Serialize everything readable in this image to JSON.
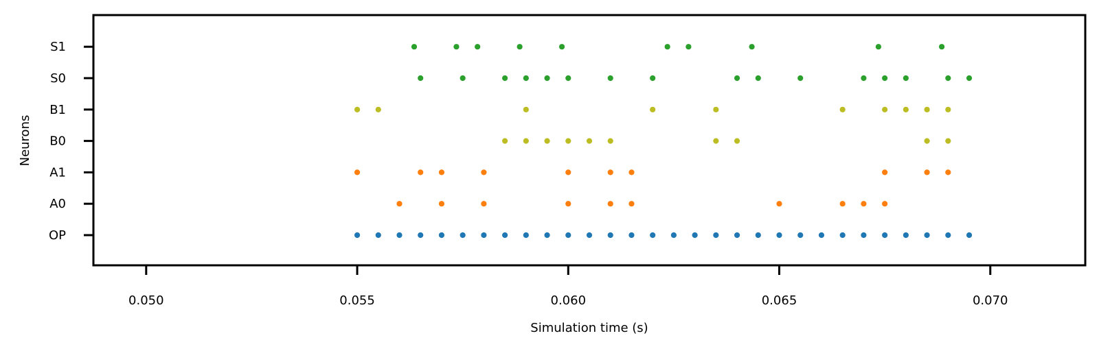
{
  "chart_data": {
    "type": "scatter",
    "title": "",
    "xlabel": "Simulation time (s)",
    "ylabel": "Neurons",
    "xlim": [
      0.04875,
      0.07225
    ],
    "x_ticks": [
      "0.050",
      "0.055",
      "0.060",
      "0.065",
      "0.070"
    ],
    "x_tick_values": [
      0.05,
      0.055,
      0.06,
      0.065,
      0.07
    ],
    "categories": [
      "OP",
      "A0",
      "A1",
      "B0",
      "B1",
      "S0",
      "S1"
    ],
    "grid": false,
    "legend": "none",
    "series": [
      {
        "category": "OP",
        "color": "#1f77b4",
        "x": [
          0.055,
          0.0555,
          0.056,
          0.0565,
          0.057,
          0.0575,
          0.058,
          0.0585,
          0.059,
          0.0595,
          0.06,
          0.0605,
          0.061,
          0.0615,
          0.062,
          0.0625,
          0.063,
          0.0635,
          0.064,
          0.0645,
          0.065,
          0.0655,
          0.066,
          0.0665,
          0.067,
          0.0675,
          0.068,
          0.0685,
          0.069,
          0.0695
        ]
      },
      {
        "category": "A0",
        "color": "#ff7f0e",
        "x": [
          0.056,
          0.057,
          0.058,
          0.06,
          0.061,
          0.0615,
          0.065,
          0.0665,
          0.067,
          0.0675
        ]
      },
      {
        "category": "A1",
        "color": "#ff7f0e",
        "x": [
          0.055,
          0.0565,
          0.057,
          0.058,
          0.06,
          0.061,
          0.0615,
          0.0675,
          0.0685,
          0.069
        ]
      },
      {
        "category": "B0",
        "color": "#bcbd22",
        "x": [
          0.0585,
          0.059,
          0.0595,
          0.06,
          0.0605,
          0.061,
          0.0635,
          0.064,
          0.0685,
          0.069
        ]
      },
      {
        "category": "B1",
        "color": "#bcbd22",
        "x": [
          0.055,
          0.0555,
          0.059,
          0.062,
          0.0635,
          0.0665,
          0.0675,
          0.068,
          0.0685,
          0.069
        ]
      },
      {
        "category": "S0",
        "color": "#2ca02c",
        "x": [
          0.0565,
          0.0575,
          0.0585,
          0.059,
          0.0595,
          0.06,
          0.061,
          0.062,
          0.064,
          0.0645,
          0.0655,
          0.067,
          0.0675,
          0.068,
          0.069,
          0.0695
        ]
      },
      {
        "category": "S1",
        "color": "#2ca02c",
        "x": [
          0.05635,
          0.05735,
          0.05785,
          0.05885,
          0.05985,
          0.06235,
          0.06285,
          0.06435,
          0.06735,
          0.06885
        ]
      }
    ]
  }
}
